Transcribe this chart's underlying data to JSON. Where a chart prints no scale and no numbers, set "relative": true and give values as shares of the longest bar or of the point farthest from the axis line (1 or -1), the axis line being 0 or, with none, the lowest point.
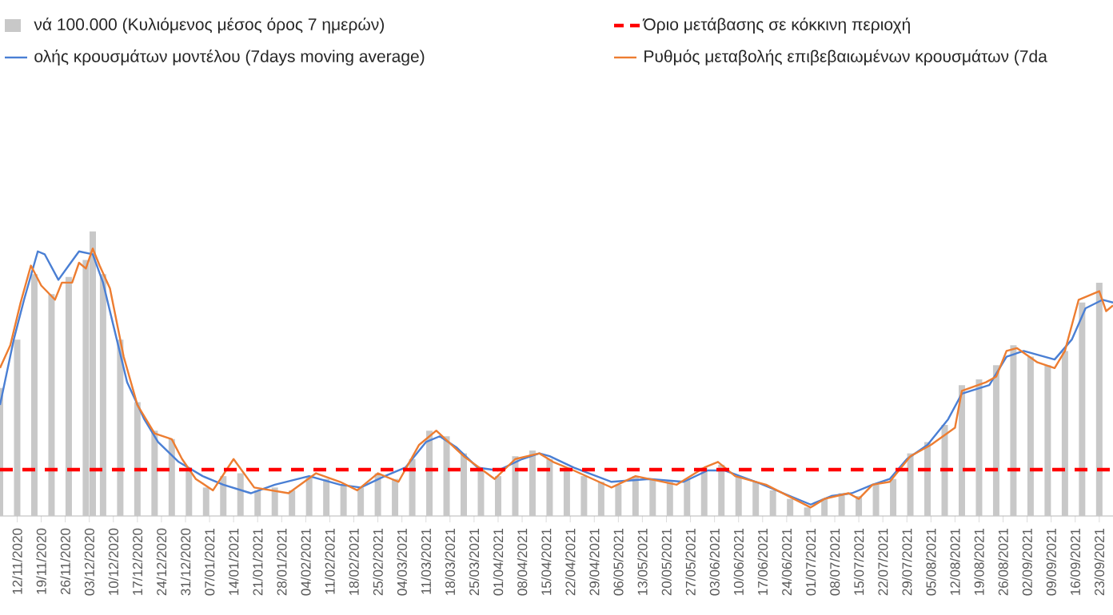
{
  "chart_data": {
    "type": "bar",
    "relative": true,
    "legend": "top",
    "xlim": [
      "2020-11-07",
      "2021-09-27"
    ],
    "xticks": [
      {
        "value": "2020-11-12",
        "label": "12/11/2020"
      },
      {
        "value": "2020-11-19",
        "label": "19/11/2020"
      },
      {
        "value": "2020-11-26",
        "label": "26/11/2020"
      },
      {
        "value": "2020-12-03",
        "label": "03/12/2020"
      },
      {
        "value": "2020-12-10",
        "label": "10/12/2020"
      },
      {
        "value": "2020-12-17",
        "label": "17/12/2020"
      },
      {
        "value": "2020-12-24",
        "label": "24/12/2020"
      },
      {
        "value": "2020-12-31",
        "label": "31/12/2020"
      },
      {
        "value": "2021-01-07",
        "label": "07/01/2021"
      },
      {
        "value": "2021-01-14",
        "label": "14/01/2021"
      },
      {
        "value": "2021-01-21",
        "label": "21/01/2021"
      },
      {
        "value": "2021-01-28",
        "label": "28/01/2021"
      },
      {
        "value": "2021-02-04",
        "label": "04/02/2021"
      },
      {
        "value": "2021-02-11",
        "label": "11/02/2021"
      },
      {
        "value": "2021-02-18",
        "label": "18/02/2021"
      },
      {
        "value": "2021-02-25",
        "label": "25/02/2021"
      },
      {
        "value": "2021-03-04",
        "label": "04/03/2021"
      },
      {
        "value": "2021-03-11",
        "label": "11/03/2021"
      },
      {
        "value": "2021-03-18",
        "label": "18/03/2021"
      },
      {
        "value": "2021-03-25",
        "label": "25/03/2021"
      },
      {
        "value": "2021-04-01",
        "label": "01/04/2021"
      },
      {
        "value": "2021-04-08",
        "label": "08/04/2021"
      },
      {
        "value": "2021-04-15",
        "label": "15/04/2021"
      },
      {
        "value": "2021-04-22",
        "label": "22/04/2021"
      },
      {
        "value": "2021-04-29",
        "label": "29/04/2021"
      },
      {
        "value": "2021-05-06",
        "label": "06/05/2021"
      },
      {
        "value": "2021-05-13",
        "label": "13/05/2021"
      },
      {
        "value": "2021-05-20",
        "label": "20/05/2021"
      },
      {
        "value": "2021-05-27",
        "label": "27/05/2021"
      },
      {
        "value": "2021-06-03",
        "label": "03/06/2021"
      },
      {
        "value": "2021-06-10",
        "label": "10/06/2021"
      },
      {
        "value": "2021-06-17",
        "label": "17/06/2021"
      },
      {
        "value": "2021-06-24",
        "label": "24/06/2021"
      },
      {
        "value": "2021-07-01",
        "label": "01/07/2021"
      },
      {
        "value": "2021-07-08",
        "label": "08/07/2021"
      },
      {
        "value": "2021-07-15",
        "label": "15/07/2021"
      },
      {
        "value": "2021-07-22",
        "label": "22/07/2021"
      },
      {
        "value": "2021-07-29",
        "label": "29/07/2021"
      },
      {
        "value": "2021-08-05",
        "label": "05/08/2021"
      },
      {
        "value": "2021-08-12",
        "label": "12/08/2021"
      },
      {
        "value": "2021-08-19",
        "label": "19/08/2021"
      },
      {
        "value": "2021-08-26",
        "label": "26/08/2021"
      },
      {
        "value": "2021-09-02",
        "label": "02/09/2021"
      },
      {
        "value": "2021-09-09",
        "label": "09/09/2021"
      },
      {
        "value": "2021-09-16",
        "label": "16/09/2021"
      },
      {
        "value": "2021-09-23",
        "label": "23/09/2021"
      }
    ],
    "series": [
      {
        "name": "νά 100.000 (Κυλιόμενος μέσος όρος 7 ημερών)",
        "color": "#c8c8c8",
        "x": [
          "2020-11-07",
          "2020-11-12",
          "2020-11-17",
          "2020-11-22",
          "2020-11-27",
          "2020-12-02",
          "2020-12-04",
          "2020-12-07",
          "2020-12-12",
          "2020-12-17",
          "2020-12-22",
          "2020-12-27",
          "2021-01-01",
          "2021-01-06",
          "2021-01-11",
          "2021-01-16",
          "2021-01-21",
          "2021-01-26",
          "2021-01-31",
          "2021-02-05",
          "2021-02-10",
          "2021-02-15",
          "2021-02-20",
          "2021-02-25",
          "2021-03-02",
          "2021-03-07",
          "2021-03-12",
          "2021-03-17",
          "2021-03-22",
          "2021-03-27",
          "2021-04-01",
          "2021-04-06",
          "2021-04-11",
          "2021-04-16",
          "2021-04-21",
          "2021-04-26",
          "2021-05-01",
          "2021-05-06",
          "2021-05-11",
          "2021-05-16",
          "2021-05-21",
          "2021-05-26",
          "2021-05-31",
          "2021-06-05",
          "2021-06-10",
          "2021-06-15",
          "2021-06-20",
          "2021-06-25",
          "2021-06-30",
          "2021-07-05",
          "2021-07-10",
          "2021-07-15",
          "2021-07-20",
          "2021-07-25",
          "2021-07-30",
          "2021-08-04",
          "2021-08-09",
          "2021-08-14",
          "2021-08-19",
          "2021-08-24",
          "2021-08-29",
          "2021-09-03",
          "2021-09-08",
          "2021-09-13",
          "2021-09-18",
          "2021-09-23"
        ],
        "values": [
          0.45,
          0.62,
          0.85,
          0.78,
          0.84,
          0.9,
          1.0,
          0.85,
          0.62,
          0.4,
          0.3,
          0.27,
          0.17,
          0.1,
          0.14,
          0.15,
          0.09,
          0.1,
          0.09,
          0.14,
          0.13,
          0.11,
          0.1,
          0.15,
          0.13,
          0.2,
          0.3,
          0.28,
          0.22,
          0.16,
          0.14,
          0.21,
          0.23,
          0.2,
          0.17,
          0.14,
          0.12,
          0.11,
          0.14,
          0.13,
          0.12,
          0.13,
          0.17,
          0.18,
          0.14,
          0.12,
          0.09,
          0.06,
          0.03,
          0.06,
          0.08,
          0.07,
          0.11,
          0.13,
          0.22,
          0.26,
          0.32,
          0.46,
          0.48,
          0.53,
          0.6,
          0.56,
          0.53,
          0.58,
          0.75,
          0.82
        ]
      },
      {
        "type": "line",
        "name": "ολής κρουσμάτων μοντέλου (7days moving average)",
        "color": "#4a7fd4",
        "x": [
          "2020-11-07",
          "2020-11-11",
          "2020-11-14",
          "2020-11-18",
          "2020-11-20",
          "2020-11-24",
          "2020-11-27",
          "2020-11-30",
          "2020-12-04",
          "2020-12-07",
          "2020-12-10",
          "2020-12-14",
          "2020-12-19",
          "2020-12-23",
          "2020-12-29",
          "2021-01-05",
          "2021-01-11",
          "2021-01-19",
          "2021-01-26",
          "2021-02-05",
          "2021-02-14",
          "2021-02-20",
          "2021-02-27",
          "2021-03-05",
          "2021-03-11",
          "2021-03-15",
          "2021-03-20",
          "2021-03-26",
          "2021-04-01",
          "2021-04-08",
          "2021-04-13",
          "2021-04-16",
          "2021-04-23",
          "2021-05-04",
          "2021-05-15",
          "2021-05-25",
          "2021-06-01",
          "2021-06-06",
          "2021-06-15",
          "2021-06-23",
          "2021-07-01",
          "2021-07-07",
          "2021-07-13",
          "2021-07-19",
          "2021-07-24",
          "2021-07-29",
          "2021-08-04",
          "2021-08-10",
          "2021-08-14",
          "2021-08-22",
          "2021-08-27",
          "2021-09-01",
          "2021-09-10",
          "2021-09-15",
          "2021-09-19",
          "2021-09-24",
          "2021-09-27"
        ],
        "values": [
          0.39,
          0.62,
          0.76,
          0.93,
          0.92,
          0.83,
          0.88,
          0.93,
          0.92,
          0.82,
          0.67,
          0.47,
          0.34,
          0.26,
          0.19,
          0.14,
          0.11,
          0.08,
          0.11,
          0.14,
          0.11,
          0.1,
          0.14,
          0.17,
          0.26,
          0.28,
          0.24,
          0.17,
          0.16,
          0.2,
          0.22,
          0.21,
          0.17,
          0.12,
          0.13,
          0.12,
          0.16,
          0.16,
          0.12,
          0.08,
          0.04,
          0.07,
          0.08,
          0.11,
          0.13,
          0.2,
          0.25,
          0.34,
          0.43,
          0.46,
          0.56,
          0.58,
          0.55,
          0.62,
          0.73,
          0.76,
          0.75
        ]
      },
      {
        "type": "line",
        "name": "Ρυθμός μεταβολής επιβεβαιωμένων κρουσμάτων (7da",
        "color": "#ed7d31",
        "x": [
          "2020-11-07",
          "2020-11-10",
          "2020-11-13",
          "2020-11-16",
          "2020-11-19",
          "2020-11-23",
          "2020-11-25",
          "2020-11-28",
          "2020-11-30",
          "2020-12-02",
          "2020-12-04",
          "2020-12-06",
          "2020-12-09",
          "2020-12-13",
          "2020-12-17",
          "2020-12-22",
          "2020-12-27",
          "2020-12-30",
          "2021-01-03",
          "2021-01-08",
          "2021-01-14",
          "2021-01-20",
          "2021-01-30",
          "2021-02-07",
          "2021-02-14",
          "2021-02-19",
          "2021-02-25",
          "2021-03-03",
          "2021-03-09",
          "2021-03-14",
          "2021-03-22",
          "2021-03-31",
          "2021-04-06",
          "2021-04-13",
          "2021-04-17",
          "2021-04-23",
          "2021-05-04",
          "2021-05-11",
          "2021-05-23",
          "2021-05-31",
          "2021-06-04",
          "2021-06-09",
          "2021-06-18",
          "2021-07-01",
          "2021-07-05",
          "2021-07-12",
          "2021-07-15",
          "2021-07-19",
          "2021-07-24",
          "2021-07-30",
          "2021-08-05",
          "2021-08-12",
          "2021-08-14",
          "2021-08-21",
          "2021-08-24",
          "2021-08-27",
          "2021-08-30",
          "2021-09-05",
          "2021-09-10",
          "2021-09-13",
          "2021-09-17",
          "2021-09-23",
          "2021-09-25",
          "2021-09-27"
        ],
        "values": [
          0.52,
          0.6,
          0.75,
          0.88,
          0.81,
          0.76,
          0.82,
          0.82,
          0.89,
          0.87,
          0.94,
          0.88,
          0.8,
          0.56,
          0.39,
          0.29,
          0.27,
          0.2,
          0.13,
          0.09,
          0.2,
          0.1,
          0.08,
          0.15,
          0.12,
          0.09,
          0.15,
          0.12,
          0.25,
          0.3,
          0.21,
          0.13,
          0.2,
          0.22,
          0.19,
          0.16,
          0.1,
          0.14,
          0.11,
          0.17,
          0.19,
          0.14,
          0.11,
          0.03,
          0.06,
          0.08,
          0.06,
          0.11,
          0.12,
          0.21,
          0.25,
          0.31,
          0.44,
          0.47,
          0.49,
          0.58,
          0.59,
          0.54,
          0.52,
          0.58,
          0.76,
          0.79,
          0.72,
          0.74
        ]
      }
    ],
    "ref_lines": [
      {
        "axis": "y",
        "value": 0.163,
        "label": "Όριο μετάβασης σε κόκκινη περιοχή",
        "color": "#ff0000",
        "line_style": "dashed"
      }
    ]
  }
}
